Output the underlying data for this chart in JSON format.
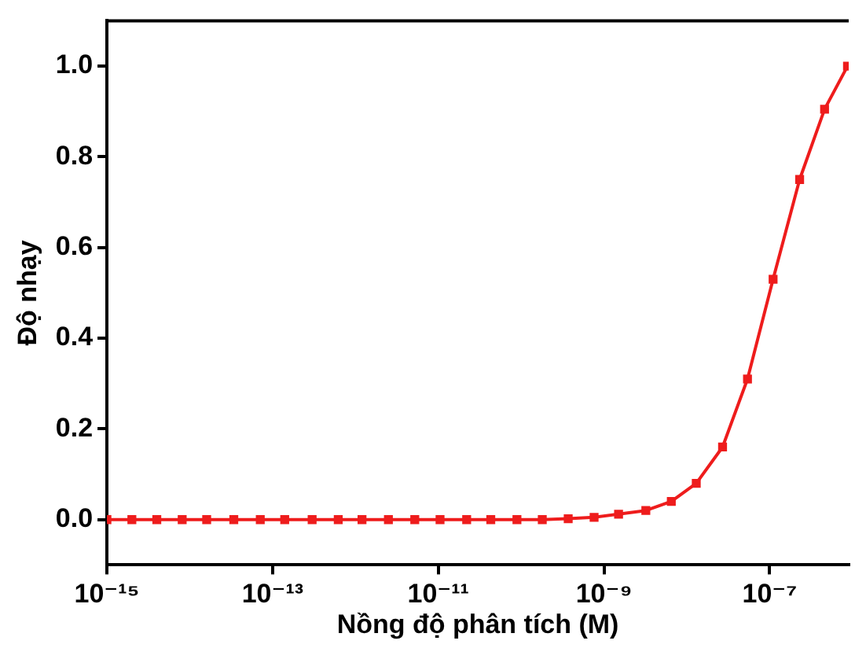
{
  "chart_data": {
    "type": "line",
    "xlabel": "Nồng độ phân tích (M)",
    "ylabel": "Độ nhạy",
    "log": "x",
    "x": [
      1e-15,
      2e-15,
      4e-15,
      8.1e-15,
      1.6e-14,
      3.4e-14,
      7.1e-14,
      1.4e-13,
      3e-13,
      6.2e-13,
      1.2e-12,
      2.5e-12,
      5.2e-12,
      1.05e-11,
      2.2e-11,
      4.3e-11,
      8.9e-11,
      1.8e-10,
      3.7e-10,
      7.6e-10,
      1.5e-09,
      3.2e-09,
      6.5e-09,
      1.3e-08,
      2.7e-08,
      5.4e-08,
      1.1e-07,
      2.3e-07,
      4.6e-07,
      8.7e-07
    ],
    "series": [
      {
        "color": "#ee1c1c",
        "values": [
          0,
          0,
          0,
          0,
          0,
          0,
          0,
          0,
          0,
          0,
          0,
          0,
          0,
          0,
          0,
          0,
          0,
          0,
          0.002,
          0.005,
          0.012,
          0.02,
          0.04,
          0.08,
          0.16,
          0.31,
          0.53,
          0.75,
          0.905,
          1.0
        ]
      }
    ],
    "xlim": [
      1e-15,
      9e-07
    ],
    "xticks": [
      {
        "value": 1e-15,
        "label": "10⁻¹⁵"
      },
      {
        "value": 1e-13,
        "label": "10⁻¹³"
      },
      {
        "value": 1e-11,
        "label": "10⁻¹¹"
      },
      {
        "value": 1e-09,
        "label": "10⁻⁹"
      },
      {
        "value": 1e-07,
        "label": "10⁻⁷"
      }
    ],
    "ylim": [
      -0.1,
      1.1
    ],
    "yticks": [
      {
        "value": 0,
        "label": "0.0"
      },
      {
        "value": 0.2,
        "label": "0.2"
      },
      {
        "value": 0.4,
        "label": "0.4"
      },
      {
        "value": 0.6,
        "label": "0.6"
      },
      {
        "value": 0.8,
        "label": "0.8"
      },
      {
        "value": 1,
        "label": "1.0"
      }
    ],
    "grid": false,
    "legend": false,
    "marker": "square",
    "line_style": "solid"
  }
}
